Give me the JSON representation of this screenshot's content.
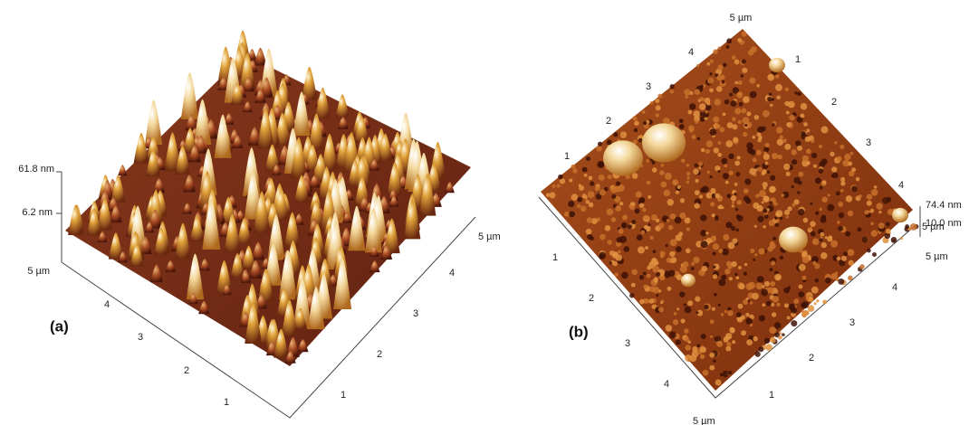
{
  "panels": [
    {
      "label": "(a)",
      "z_labels": [
        "61.8 nm",
        "6.2 nm"
      ],
      "left_axis": {
        "end": "5 µm",
        "ticks": [
          "4",
          "3",
          "2",
          "1"
        ]
      },
      "right_axis": {
        "end": "5 µm",
        "ticks": [
          "1",
          "2",
          "3",
          "4"
        ]
      }
    },
    {
      "label": "(b)",
      "z_labels": [
        "74.4 nm",
        "10.0 nm",
        "5 µm"
      ],
      "top_label": "5 µm",
      "top_right_ticks": [
        "1",
        "2",
        "3",
        "4"
      ],
      "top_left_ticks": [
        "4",
        "3",
        "2",
        "1"
      ],
      "right_axis": {
        "end": "5 µm",
        "ticks": [
          "4",
          "3",
          "2",
          "1"
        ]
      },
      "left_axis": {
        "end": "5 µm",
        "ticks": [
          "1",
          "2",
          "3",
          "4"
        ]
      }
    }
  ]
}
